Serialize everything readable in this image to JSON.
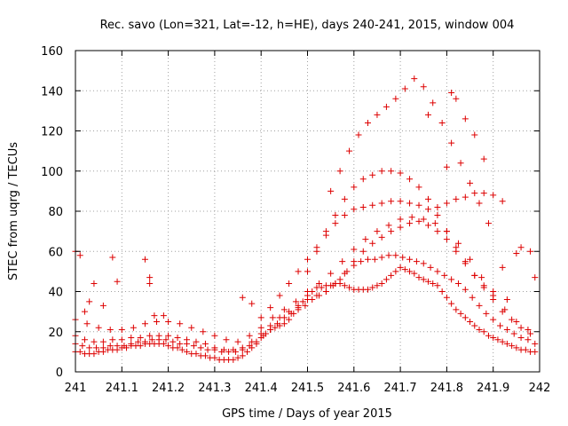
{
  "chart_data": {
    "type": "scatter",
    "title": "Rec. savo (Lon=321, Lat=-12, h=HE), days 240-241, 2015, window 004",
    "xlabel": "GPS time / Days of year 2015",
    "ylabel": "STEC from uqrg / TECUs",
    "xlim": [
      241,
      242
    ],
    "ylim": [
      0,
      160
    ],
    "x_ticks": [
      241,
      241.1,
      241.2,
      241.3,
      241.4,
      241.5,
      241.6,
      241.7,
      241.8,
      241.9,
      242
    ],
    "x_tick_labels": [
      "241",
      "241.1",
      "241.2",
      "241.3",
      "241.4",
      "241.5",
      "241.6",
      "241.7",
      "241.8",
      "241.9",
      "242"
    ],
    "y_ticks": [
      0,
      20,
      40,
      60,
      80,
      100,
      120,
      140,
      160
    ],
    "y_tick_labels": [
      "0",
      "20",
      "40",
      "60",
      "80",
      "100",
      "120",
      "140",
      "160"
    ],
    "grid": true,
    "marker": "plus",
    "color": "#dd0000",
    "series": [
      {
        "name": "",
        "x": [
          241.0,
          241.01,
          241.02,
          241.03,
          241.04,
          241.05,
          241.06,
          241.07,
          241.08,
          241.09,
          241.1,
          241.11,
          241.12,
          241.13,
          241.14,
          241.15,
          241.16,
          241.17,
          241.18,
          241.19,
          241.2,
          241.21,
          241.22,
          241.23,
          241.24,
          241.25,
          241.26,
          241.27,
          241.28,
          241.29,
          241.3,
          241.31,
          241.32,
          241.33,
          241.34,
          241.35,
          241.36,
          241.37,
          241.38,
          241.39,
          241.4,
          241.41,
          241.42,
          241.43,
          241.44,
          241.45,
          241.46,
          241.47,
          241.48,
          241.49,
          241.5,
          241.51,
          241.52,
          241.53,
          241.54,
          241.55,
          241.56,
          241.57,
          241.58,
          241.59,
          241.6,
          241.61,
          241.62,
          241.63,
          241.64,
          241.65,
          241.66,
          241.67,
          241.68,
          241.69,
          241.7,
          241.71,
          241.72,
          241.73,
          241.74,
          241.75,
          241.76,
          241.77,
          241.78,
          241.79,
          241.8,
          241.81,
          241.82,
          241.83,
          241.84,
          241.85,
          241.86,
          241.87,
          241.88,
          241.89,
          241.9,
          241.91,
          241.92,
          241.93,
          241.94,
          241.95,
          241.96,
          241.97,
          241.98,
          241.99
        ],
        "y": [
          10,
          10,
          9,
          9,
          9,
          10,
          10,
          11,
          11,
          11,
          12,
          12,
          13,
          13,
          13,
          14,
          14,
          14,
          14,
          14,
          13,
          12,
          12,
          11,
          10,
          9,
          9,
          8,
          8,
          7,
          7,
          6,
          6,
          6,
          6,
          7,
          8,
          10,
          12,
          14,
          17,
          19,
          21,
          22,
          23,
          24,
          26,
          29,
          32,
          35,
          38,
          40,
          42,
          42,
          43,
          43,
          44,
          44,
          43,
          42,
          41,
          41,
          41,
          41,
          42,
          43,
          44,
          46,
          48,
          50,
          52,
          51,
          50,
          49,
          47,
          46,
          45,
          44,
          43,
          40,
          37,
          34,
          31,
          29,
          27,
          25,
          23,
          21,
          20,
          18,
          17,
          16,
          15,
          14,
          13,
          12,
          11,
          11,
          10,
          10
        ]
      },
      {
        "name": "",
        "x": [
          241.0,
          241.015,
          241.03,
          241.045,
          241.06,
          241.075,
          241.09,
          241.105,
          241.12,
          241.135,
          241.15,
          241.165,
          241.18,
          241.195,
          241.21,
          241.225,
          241.24,
          241.255,
          241.27,
          241.285,
          241.3,
          241.315,
          241.33,
          241.345,
          241.36,
          241.375,
          241.39,
          241.405,
          241.42,
          241.435,
          241.45,
          241.465,
          241.48,
          241.495,
          241.51,
          241.525,
          241.54,
          241.555,
          241.57,
          241.585,
          241.6,
          241.615,
          241.63,
          241.645,
          241.66,
          241.675,
          241.69,
          241.705,
          241.72,
          241.735,
          241.75,
          241.765,
          241.78,
          241.795,
          241.81,
          241.825,
          241.84,
          241.855,
          241.87,
          241.885,
          241.9,
          241.915,
          241.93,
          241.945,
          241.96,
          241.975,
          241.99
        ],
        "y": [
          14,
          13,
          12,
          12,
          12,
          13,
          13,
          13,
          14,
          15,
          15,
          16,
          16,
          16,
          15,
          14,
          14,
          13,
          12,
          11,
          11,
          10,
          10,
          10,
          11,
          13,
          15,
          18,
          21,
          24,
          27,
          29,
          31,
          33,
          36,
          38,
          40,
          43,
          46,
          50,
          53,
          55,
          56,
          56,
          57,
          58,
          58,
          57,
          56,
          55,
          54,
          52,
          50,
          48,
          46,
          44,
          41,
          37,
          33,
          29,
          26,
          23,
          21,
          19,
          17,
          16,
          14
        ]
      },
      {
        "name": "",
        "x": [
          241.0,
          241.02,
          241.04,
          241.06,
          241.08,
          241.1,
          241.12,
          241.14,
          241.16,
          241.18,
          241.2,
          241.22,
          241.24,
          241.26,
          241.28,
          241.3,
          241.32,
          241.34,
          241.36,
          241.38,
          241.4,
          241.42,
          241.44,
          241.46,
          241.48,
          241.5,
          241.52,
          241.54,
          241.56,
          241.58,
          241.6,
          241.62,
          241.64,
          241.66,
          241.68,
          241.7,
          241.72,
          241.74,
          241.76,
          241.78,
          241.8,
          241.82,
          241.84,
          241.86,
          241.88,
          241.9,
          241.92,
          241.94,
          241.96,
          241.98
        ],
        "y": [
          18,
          16,
          15,
          15,
          16,
          16,
          17,
          17,
          18,
          18,
          18,
          17,
          16,
          15,
          14,
          12,
          11,
          11,
          12,
          15,
          19,
          23,
          27,
          30,
          33,
          36,
          38,
          40,
          44,
          49,
          55,
          60,
          64,
          67,
          70,
          72,
          74,
          75,
          73,
          70,
          66,
          60,
          54,
          48,
          42,
          36,
          30,
          26,
          22,
          19
        ]
      },
      {
        "name": "",
        "x": [
          241.0,
          241.025,
          241.05,
          241.075,
          241.1,
          241.125,
          241.15,
          241.175,
          241.2,
          241.225,
          241.25,
          241.275,
          241.3,
          241.325,
          241.35,
          241.375,
          241.4,
          241.425,
          241.45,
          241.475,
          241.5,
          241.525,
          241.55,
          241.575,
          241.6,
          241.625,
          241.65,
          241.675,
          241.7,
          241.725,
          241.75,
          241.775,
          241.8,
          241.825,
          241.85,
          241.875,
          241.9,
          241.925,
          241.95,
          241.975
        ],
        "y": [
          26,
          24,
          22,
          21,
          21,
          22,
          24,
          25,
          25,
          24,
          22,
          20,
          18,
          16,
          15,
          18,
          22,
          27,
          31,
          35,
          40,
          44,
          49,
          55,
          61,
          66,
          70,
          73,
          76,
          77,
          76,
          74,
          70,
          64,
          56,
          47,
          38,
          31,
          25,
          21
        ]
      },
      {
        "name": "",
        "x": [
          241.4,
          241.42,
          241.44,
          241.46,
          241.48,
          241.5,
          241.52,
          241.54,
          241.56,
          241.58,
          241.6,
          241.62,
          241.64,
          241.66,
          241.68,
          241.7,
          241.72,
          241.74,
          241.76,
          241.78,
          241.8,
          241.82,
          241.84,
          241.86,
          241.88,
          241.9,
          241.92
        ],
        "y": [
          27,
          32,
          38,
          44,
          50,
          56,
          62,
          68,
          74,
          78,
          81,
          82,
          83,
          84,
          85,
          85,
          84,
          83,
          81,
          82,
          84,
          86,
          87,
          89,
          89,
          88,
          85
        ]
      },
      {
        "name": "",
        "x": [
          241.5,
          241.52,
          241.54,
          241.56,
          241.58,
          241.6,
          241.62,
          241.64,
          241.66,
          241.68,
          241.7,
          241.72,
          241.74,
          241.76,
          241.78,
          241.8,
          241.82,
          241.84,
          241.86,
          241.88,
          241.9
        ],
        "y": [
          50,
          60,
          70,
          78,
          86,
          92,
          96,
          98,
          100,
          100,
          99,
          96,
          92,
          86,
          78,
          70,
          62,
          55,
          48,
          43,
          40
        ]
      },
      {
        "name": "",
        "x": [
          241.55,
          241.57,
          241.59,
          241.61,
          241.63,
          241.65,
          241.67,
          241.69,
          241.71,
          241.73,
          241.75,
          241.77,
          241.79,
          241.81,
          241.83,
          241.85,
          241.87,
          241.89
        ],
        "y": [
          90,
          100,
          110,
          118,
          124,
          128,
          132,
          136,
          141,
          146,
          142,
          134,
          124,
          114,
          104,
          94,
          84,
          74
        ]
      },
      {
        "name": "",
        "x": [
          241.0,
          241.01,
          241.02,
          241.03,
          241.04,
          241.06,
          241.08,
          241.09,
          241.15,
          241.16,
          241.16,
          241.17,
          241.19,
          241.36,
          241.38,
          241.76,
          241.8,
          241.81,
          241.82,
          241.84,
          241.86,
          241.88,
          241.92,
          241.93,
          241.95,
          241.96,
          241.98,
          241.99
        ],
        "y": [
          60,
          58,
          30,
          35,
          44,
          33,
          57,
          45,
          56,
          44,
          47,
          28,
          28,
          37,
          34,
          128,
          102,
          139,
          136,
          126,
          118,
          106,
          52,
          36,
          59,
          62,
          60,
          47
        ]
      }
    ]
  }
}
